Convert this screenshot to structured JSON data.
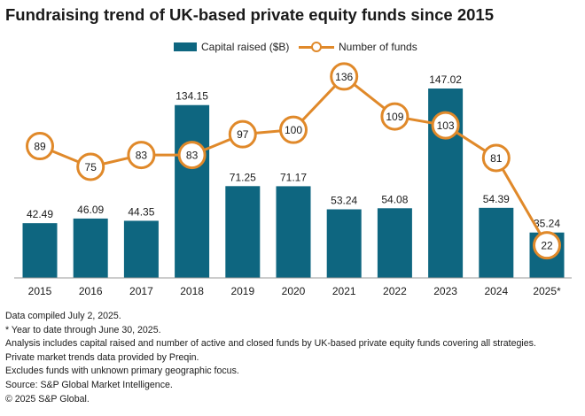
{
  "title": "Fundraising trend of UK-based private equity funds since 2015",
  "legend": {
    "bar_label": "Capital raised ($B)",
    "line_label": "Number of funds"
  },
  "colors": {
    "bar": "#0e6680",
    "line": "#e0892a",
    "axis": "#9a9a9a"
  },
  "chart_data": {
    "type": "bar+line",
    "title": "Fundraising trend of UK-based private equity funds since 2015",
    "categories": [
      "2015",
      "2016",
      "2017",
      "2018",
      "2019",
      "2020",
      "2021",
      "2022",
      "2023",
      "2024",
      "2025*"
    ],
    "series": [
      {
        "name": "Capital raised ($B)",
        "type": "bar",
        "values": [
          42.49,
          46.09,
          44.35,
          134.15,
          71.25,
          71.17,
          53.24,
          54.08,
          147.02,
          54.39,
          35.24
        ],
        "labels": [
          "42.49",
          "46.09",
          "44.35",
          "134.15",
          "71.25",
          "71.17",
          "53.24",
          "54.08",
          "147.02",
          "54.39",
          "35.24"
        ]
      },
      {
        "name": "Number of funds",
        "type": "line",
        "values": [
          89,
          75,
          83,
          83,
          97,
          100,
          136,
          109,
          103,
          81,
          22
        ],
        "labels": [
          "89",
          "75",
          "83",
          "83",
          "97",
          "100",
          "136",
          "109",
          "103",
          "81",
          "22"
        ]
      }
    ],
    "bar_axis_range": [
      0,
      147.02
    ],
    "line_axis_range": [
      0,
      144
    ],
    "xlabel": "",
    "ylabel": "",
    "grid": false,
    "legend_position": "top-center"
  },
  "footnotes": [
    "Data compiled July 2, 2025.",
    "* Year to date through June 30, 2025.",
    "Analysis includes capital raised and number of active and closed funds by UK-based private equity funds covering all strategies.",
    "Private market trends data provided by Preqin.",
    "Excludes funds with unknown primary geographic focus.",
    "Source: S&P Global Market Intelligence.",
    "© 2025 S&P Global."
  ]
}
